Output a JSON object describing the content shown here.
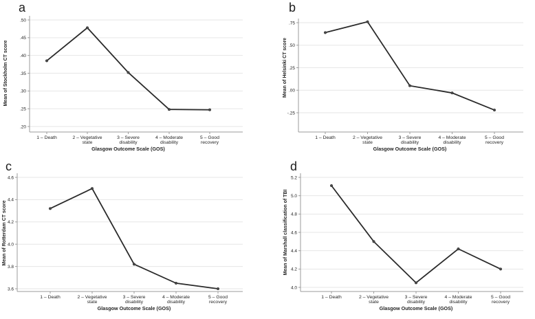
{
  "figure": {
    "background_color": "#ffffff",
    "line_color": "#2a2a2a",
    "marker_color": "#4a4a4a",
    "grid_color": "#e6e6e6",
    "axis_color": "#9b9b9b",
    "text_color": "#242424"
  },
  "chart_data": [
    {
      "type": "line",
      "panel_letter": "a",
      "ylabel": "Mean of Stockholm CT score",
      "xlabel": "Glasgow Outcome Scale (GOS)",
      "categories": [
        "1 – Death",
        "2 – Vegetative state",
        "3 – Severe disability",
        "4 – Moderate disability",
        "5 – Good recovery"
      ],
      "category_lines": [
        [
          "1 – Death"
        ],
        [
          "2 – Vegetative",
          "state"
        ],
        [
          "3 – Severe",
          "disability"
        ],
        [
          "4 – Moderate",
          "disability"
        ],
        [
          "5 – Good",
          "recovery"
        ]
      ],
      "values": [
        0.385,
        0.478,
        0.352,
        0.248,
        0.247
      ],
      "ytick_labels": [
        ".50",
        ".45",
        ".40",
        ".35",
        ".30",
        ".25",
        ".20"
      ],
      "ytick_values": [
        0.5,
        0.45,
        0.4,
        0.35,
        0.3,
        0.25,
        0.2
      ],
      "ylim": [
        0.18,
        0.51
      ],
      "grid": true,
      "legend": null
    },
    {
      "type": "line",
      "panel_letter": "b",
      "ylabel": "Mean of Helsinki CT score",
      "xlabel": "Glasgow Outcome Scale (GOS)",
      "categories": [
        "1 – Death",
        "2 – Vegetative state",
        "3 – Severe disability",
        "4 – Moderate disability",
        "5 – Good recovery"
      ],
      "category_lines": [
        [
          "1 – Death"
        ],
        [
          "2 – Vegetative",
          "state"
        ],
        [
          "3 – Severe",
          "disability"
        ],
        [
          "4 – Moderate",
          "disability"
        ],
        [
          "5 – Good",
          "recovery"
        ]
      ],
      "values": [
        0.64,
        0.76,
        0.05,
        -0.03,
        -0.22
      ],
      "ytick_labels": [
        ".75",
        ".50",
        ".25",
        ".00",
        "-.25"
      ],
      "ytick_values": [
        0.75,
        0.5,
        0.25,
        0.0,
        -0.25
      ],
      "ylim": [
        -0.47,
        0.8
      ],
      "grid": true,
      "legend": null
    },
    {
      "type": "line",
      "panel_letter": "c",
      "ylabel": "Mean of Rotterdam CT score",
      "xlabel": "Glasgow Outcome Scale (GOS)",
      "categories": [
        "1 – Death",
        "2 – Vegetative state",
        "3 – Severe disability",
        "4 – Moderate disability",
        "5 – Good recovery"
      ],
      "category_lines": [
        [
          "1 – Death"
        ],
        [
          "2 – Vegetative",
          "state"
        ],
        [
          "3 – Severe",
          "disability"
        ],
        [
          "4 – Moderate",
          "disability"
        ],
        [
          "5 – Good",
          "recovery"
        ]
      ],
      "values": [
        4.32,
        4.5,
        3.82,
        3.65,
        3.6
      ],
      "ytick_labels": [
        "4.6",
        "4.4",
        "4.2",
        "4.0",
        "3.8",
        "3.6"
      ],
      "ytick_values": [
        4.6,
        4.4,
        4.2,
        4.0,
        3.8,
        3.6
      ],
      "ylim": [
        3.57,
        4.63
      ],
      "grid": true,
      "legend": null
    },
    {
      "type": "line",
      "panel_letter": "d",
      "ylabel": "Mean of Marshall classification of TBI",
      "xlabel": "Glasgow Outcome Scale (GOS)",
      "categories": [
        "1 – Death",
        "2 – Vegetative state",
        "3 – Severe disability",
        "4 – Moderate disability",
        "5 – Good recovery"
      ],
      "category_lines": [
        [
          "1 – Death"
        ],
        [
          "2 – Vegetative",
          "state"
        ],
        [
          "3 – Severe",
          "disability"
        ],
        [
          "4 – Moderate",
          "disability"
        ],
        [
          "5 – Good",
          "recovery"
        ]
      ],
      "values": [
        5.11,
        4.5,
        4.05,
        4.42,
        4.2
      ],
      "ytick_labels": [
        "5.2",
        "5.0",
        "4.8",
        "4.6",
        "4.4",
        "4.2",
        "4.0"
      ],
      "ytick_values": [
        5.2,
        5.0,
        4.8,
        4.6,
        4.4,
        4.2,
        4.0
      ],
      "ylim": [
        3.92,
        5.25
      ],
      "grid": true,
      "legend": null
    }
  ]
}
